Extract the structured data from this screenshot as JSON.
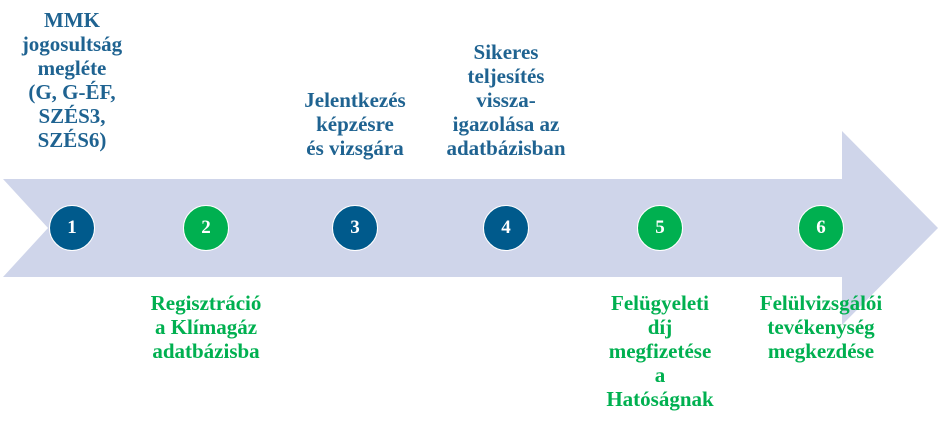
{
  "colors": {
    "arrow": "#cfd5ea",
    "blue": "#005a8c",
    "green": "#00b050",
    "blue_text": "#1f6391",
    "green_text": "#00b050"
  },
  "steps": [
    {
      "number": "1",
      "label": "MMK\njogosultság\nmegléte\n(G, G-ÉF,\nSZÉS3,\nSZÉS6)",
      "color": "blue",
      "position": "top"
    },
    {
      "number": "2",
      "label": "Regisztráció\na Klímagáz\nadatbázisba",
      "color": "green",
      "position": "bottom"
    },
    {
      "number": "3",
      "label": "Jelentkezés\nképzésre\nés vizsgára",
      "color": "blue",
      "position": "top"
    },
    {
      "number": "4",
      "label": "Sikeres\nteljesítés\nvissza-\nigazolása az\nadatbázisban",
      "color": "blue",
      "position": "top"
    },
    {
      "number": "5",
      "label": "Felügyeleti\ndíj\nmegfizetése\na\nHatóságnak",
      "color": "green",
      "position": "bottom"
    },
    {
      "number": "6",
      "label": "Felülvizsgálói\ntevékenység\nmegkezdése",
      "color": "green",
      "position": "bottom"
    }
  ]
}
